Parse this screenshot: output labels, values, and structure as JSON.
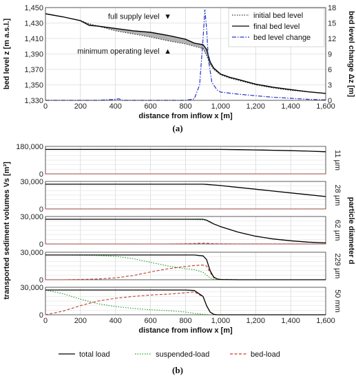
{
  "chart_data": [
    {
      "type": "line",
      "panel_caption": "(a)",
      "xlabel": "distance from inflow x [m]",
      "ylabel": "bed level z [m a.s.l.]",
      "ylabel_right": "bed level change Δz [m]",
      "xlim": [
        0,
        1600
      ],
      "ylim": [
        1330,
        1450
      ],
      "ylim_right": [
        0,
        18
      ],
      "xticks": [
        "0",
        "200",
        "400",
        "600",
        "800",
        "1,000",
        "1,200",
        "1,400",
        "1,600"
      ],
      "yticks": [
        "1,330",
        "1,350",
        "1,370",
        "1,390",
        "1,410",
        "1,430",
        "1,450"
      ],
      "yticks_right": [
        "0",
        "3",
        "6",
        "9",
        "12",
        "15",
        "18"
      ],
      "grid": true,
      "legend": "top-right",
      "annotations": [
        {
          "text": "full supply level",
          "marker": "▼",
          "x": 690,
          "y": 1432
        },
        {
          "text": "minimum operating level",
          "marker": "▲",
          "x": 690,
          "y": 1401
        }
      ],
      "series": [
        {
          "name": "initial bed level",
          "style": "dotted",
          "color": "#333333",
          "x": [
            0,
            100,
            200,
            250,
            300,
            400,
            500,
            600,
            700,
            800,
            850,
            900,
            920,
            940,
            960,
            1000,
            1050,
            1100,
            1200,
            1300,
            1400,
            1500,
            1600
          ],
          "y": [
            1442,
            1438,
            1433,
            1429,
            1426,
            1420,
            1416,
            1412,
            1407,
            1403,
            1400,
            1397,
            1388,
            1377,
            1370,
            1363,
            1359,
            1356,
            1350,
            1346,
            1343,
            1341,
            1339
          ]
        },
        {
          "name": "final bed level",
          "style": "solid",
          "color": "#000000",
          "x": [
            0,
            100,
            200,
            250,
            300,
            400,
            500,
            600,
            700,
            800,
            850,
            900,
            920,
            940,
            960,
            1000,
            1050,
            1100,
            1200,
            1300,
            1400,
            1500,
            1600
          ],
          "y": [
            1442,
            1438,
            1433,
            1427,
            1426,
            1423,
            1420,
            1418,
            1414,
            1409,
            1404,
            1402,
            1396,
            1380,
            1372,
            1364,
            1360,
            1357,
            1351,
            1347,
            1344,
            1341,
            1339
          ]
        },
        {
          "name": "bed level change",
          "style": "dashdot",
          "color": "#2233cc",
          "axis": "right",
          "x": [
            0,
            300,
            400,
            420,
            440,
            800,
            850,
            880,
            900,
            910,
            920,
            930,
            950,
            980,
            1000,
            1100,
            1200,
            1300,
            1400,
            1500,
            1600
          ],
          "y": [
            0,
            0,
            0.2,
            0.3,
            0,
            0,
            0.3,
            3,
            12,
            17.6,
            14,
            8,
            3.5,
            2,
            1.6,
            1.2,
            0.9,
            0.6,
            0.4,
            0.2,
            0.1
          ]
        }
      ]
    },
    {
      "type": "line",
      "panel_caption": "(b)",
      "xlabel": "distance from inflow x [m]",
      "ylabel": "transported sediment volumes Vs [m³]",
      "ylabel_right": "particle diameter d",
      "xlim": [
        0,
        1600
      ],
      "xticks": [
        "0",
        "200",
        "400",
        "600",
        "800",
        "1,000",
        "1,200",
        "1,400",
        "1,600"
      ],
      "grid": true,
      "legend": "bottom",
      "legend_entries": [
        "total load",
        "suspended-load",
        "bed-load"
      ],
      "x": [
        0,
        100,
        200,
        300,
        400,
        500,
        600,
        700,
        800,
        850,
        900,
        920,
        940,
        960,
        980,
        1000,
        1100,
        1200,
        1300,
        1400,
        1500,
        1600
      ],
      "subplots": [
        {
          "size_label": "11 µm",
          "ylim": [
            0,
            180000
          ],
          "yticks": [
            "0",
            "180,000"
          ],
          "total": [
            160000,
            160000,
            160000,
            160000,
            160000,
            160000,
            160000,
            160000,
            160000,
            160000,
            160000,
            160000,
            160000,
            160000,
            160000,
            160000,
            159000,
            157000,
            155000,
            152000,
            149000,
            145000
          ],
          "suspended": [
            160000,
            160000,
            160000,
            160000,
            160000,
            160000,
            160000,
            160000,
            160000,
            160000,
            160000,
            160000,
            160000,
            160000,
            160000,
            160000,
            159000,
            157000,
            155000,
            152000,
            149000,
            145000
          ],
          "bed": [
            0,
            0,
            0,
            0,
            0,
            0,
            0,
            0,
            0,
            0,
            0,
            0,
            0,
            0,
            0,
            0,
            0,
            0,
            0,
            0,
            0,
            0
          ]
        },
        {
          "size_label": "28 µm",
          "ylim": [
            0,
            30000
          ],
          "yticks": [
            "0",
            "30,000"
          ],
          "total": [
            27000,
            27000,
            27000,
            27000,
            27000,
            27000,
            27000,
            27000,
            27000,
            27000,
            27000,
            26800,
            26500,
            26200,
            25900,
            25500,
            23500,
            21500,
            19500,
            17500,
            15500,
            13500
          ],
          "suspended": [
            27000,
            27000,
            27000,
            27000,
            27000,
            27000,
            27000,
            27000,
            27000,
            27000,
            27000,
            26800,
            26500,
            26200,
            25900,
            25500,
            23500,
            21500,
            19500,
            17500,
            15500,
            13500
          ],
          "bed": [
            0,
            0,
            0,
            0,
            0,
            0,
            0,
            0,
            0,
            0,
            0,
            0,
            0,
            0,
            0,
            0,
            0,
            0,
            0,
            0,
            0,
            0
          ]
        },
        {
          "size_label": "62 µm",
          "ylim": [
            0,
            30000
          ],
          "yticks": [
            "0",
            "30,000"
          ],
          "total": [
            27000,
            27000,
            27000,
            27000,
            27000,
            27000,
            27000,
            27000,
            27000,
            27000,
            27000,
            26000,
            24000,
            22000,
            20500,
            19000,
            13000,
            8500,
            5500,
            3500,
            2000,
            1200
          ],
          "suspended": [
            27000,
            27000,
            27000,
            27000,
            27000,
            27000,
            27000,
            27000,
            26900,
            26700,
            26400,
            25500,
            23600,
            21700,
            20300,
            18800,
            12900,
            8400,
            5400,
            3400,
            1950,
            1150
          ],
          "bed": [
            0,
            0,
            0,
            0,
            0,
            0,
            0,
            0,
            200,
            500,
            900,
            800,
            500,
            300,
            200,
            150,
            100,
            80,
            60,
            40,
            30,
            20
          ]
        },
        {
          "size_label": "229 µm",
          "ylim": [
            0,
            30000
          ],
          "yticks": [
            "0",
            "30,000"
          ],
          "total": [
            27000,
            27000,
            27000,
            27000,
            27000,
            27000,
            27000,
            27000,
            27000,
            27000,
            26000,
            22000,
            10000,
            3000,
            800,
            300,
            0,
            0,
            0,
            0,
            0,
            0
          ],
          "suspended": [
            27000,
            27000,
            26800,
            26500,
            25500,
            23000,
            19000,
            15000,
            12000,
            11000,
            8000,
            5000,
            2000,
            500,
            100,
            0,
            0,
            0,
            0,
            0,
            0,
            0
          ],
          "bed": [
            0,
            0,
            300,
            800,
            2000,
            4500,
            8500,
            12000,
            14500,
            15500,
            16000,
            15000,
            8000,
            2500,
            700,
            300,
            0,
            0,
            0,
            0,
            0,
            0
          ]
        },
        {
          "size_label": "50 mm",
          "ylim": [
            0,
            30000
          ],
          "yticks": [
            "0",
            "30,000"
          ],
          "total": [
            27000,
            27000,
            27000,
            27000,
            27000,
            27000,
            27000,
            27000,
            27000,
            26500,
            20000,
            10000,
            3000,
            500,
            0,
            0,
            0,
            0,
            0,
            0,
            0,
            0
          ],
          "suspended": [
            27000,
            23000,
            17000,
            12000,
            9000,
            7000,
            5500,
            4500,
            3000,
            1500,
            500,
            200,
            0,
            0,
            0,
            0,
            0,
            0,
            0,
            0,
            0,
            0
          ],
          "bed": [
            0,
            4000,
            10000,
            15000,
            18000,
            20000,
            21500,
            22500,
            24000,
            25000,
            19500,
            9800,
            3000,
            500,
            0,
            0,
            0,
            0,
            0,
            0,
            0,
            0
          ]
        }
      ]
    }
  ],
  "colors": {
    "total": "#000000",
    "suspended": "#1a9a1a",
    "bed": "#c0392b",
    "change": "#2233cc",
    "fill": "#999999"
  }
}
